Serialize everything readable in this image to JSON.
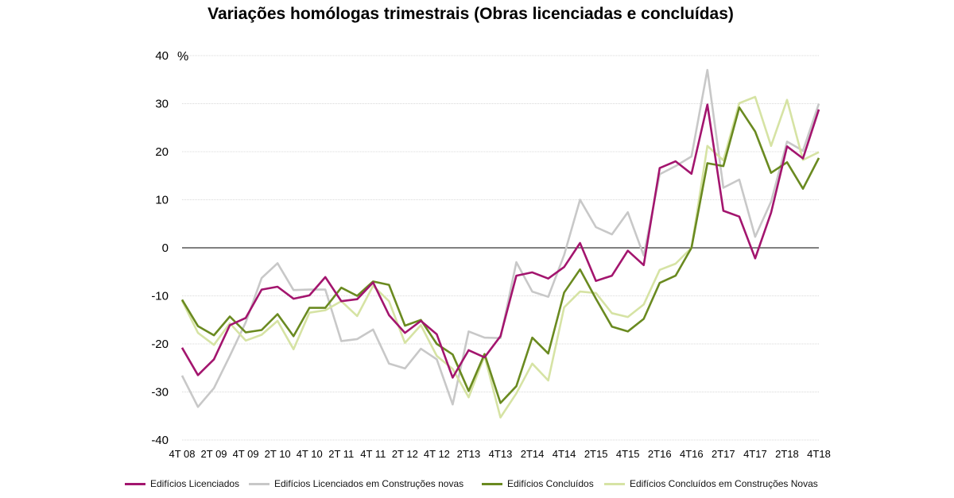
{
  "chart_data": {
    "type": "line",
    "title": "Variações homólogas trimestrais (Obras licenciadas e concluídas)",
    "ylabel": "%",
    "xlabel": "",
    "ylim": [
      -40,
      40
    ],
    "yticks": [
      -40,
      -30,
      -20,
      -10,
      0,
      10,
      20,
      30,
      40
    ],
    "categories": [
      "4T 08",
      "1T 09",
      "2T 09",
      "3T 09",
      "4T 09",
      "1T 10",
      "2T 10",
      "3T 10",
      "4T 10",
      "1T 11",
      "2T 11",
      "3T 11",
      "4T 11",
      "1T 12",
      "2T 12",
      "3T 12",
      "4T 12",
      "1T13",
      "2T13",
      "3T13",
      "4T13",
      "1T14",
      "2T14",
      "3T14",
      "4T14",
      "1T15",
      "2T15",
      "3T15",
      "4T15",
      "1T16",
      "2T16",
      "3T16",
      "4T16",
      "1T17",
      "2T17",
      "3T17",
      "4T17",
      "1T18",
      "2T18",
      "3T18",
      "4T18"
    ],
    "tick_labels": [
      "4T 08",
      "2T 09",
      "4T 09",
      "2T 10",
      "4T 10",
      "2T 11",
      "4T 11",
      "2T 12",
      "4T 12",
      "2T13",
      "4T13",
      "2T14",
      "4T14",
      "2T15",
      "4T15",
      "2T16",
      "4T16",
      "2T17",
      "4T17",
      "2T18",
      "4T18"
    ],
    "legend_position": "bottom",
    "grid": "horizontal",
    "series": [
      {
        "name": "Edifícios Licenciados",
        "color": "#A3156E",
        "values": [
          -20.8,
          -26.5,
          -23.2,
          -16.1,
          -14.6,
          -8.7,
          -8.1,
          -10.6,
          -9.9,
          -6.1,
          -11.1,
          -10.7,
          -7.2,
          -14.0,
          -17.7,
          -15.2,
          -18.0,
          -27.0,
          -21.3,
          -22.8,
          -18.4,
          -5.8,
          -5.1,
          -6.4,
          -4.0,
          1.0,
          -6.9,
          -5.8,
          -0.6,
          -3.6,
          16.6,
          18.0,
          15.4,
          29.8,
          7.7,
          6.5,
          -2.2,
          7.3,
          21.1,
          18.6,
          28.8
        ]
      },
      {
        "name": "Edifícios Licenciados em Construções novas",
        "color": "#C8C8C8",
        "values": [
          -26.6,
          -33.1,
          -29.2,
          -22.5,
          -15.5,
          -6.3,
          -3.2,
          -8.8,
          -8.7,
          -8.7,
          -19.4,
          -19.0,
          -17.0,
          -24.1,
          -25.1,
          -21.0,
          -23.2,
          -32.6,
          -17.4,
          -18.7,
          -18.8,
          -3.0,
          -9.1,
          -10.2,
          -1.5,
          10.0,
          4.3,
          2.8,
          7.4,
          -1.6,
          15.3,
          17.0,
          19.0,
          37.0,
          12.5,
          14.2,
          2.3,
          9.6,
          22.1,
          20.2,
          30.0
        ]
      },
      {
        "name": "Edifícios Concluídos",
        "color": "#6A8A20",
        "values": [
          -10.8,
          -16.3,
          -18.2,
          -14.3,
          -17.6,
          -17.1,
          -13.8,
          -18.4,
          -12.5,
          -12.5,
          -8.3,
          -10.0,
          -7.0,
          -7.7,
          -16.2,
          -15.0,
          -20.0,
          -22.2,
          -29.8,
          -22.1,
          -32.3,
          -28.8,
          -18.7,
          -22.0,
          -9.3,
          -4.5,
          -10.6,
          -16.4,
          -17.4,
          -14.8,
          -7.3,
          -5.8,
          0.0,
          17.6,
          17.0,
          29.2,
          24.2,
          15.6,
          17.8,
          12.3,
          18.7
        ]
      },
      {
        "name": "Edifícios Concluídos em Construções Novas",
        "color": "#D6E3A4",
        "values": [
          -11.0,
          -17.7,
          -20.2,
          -15.7,
          -19.3,
          -18.1,
          -15.2,
          -21.1,
          -13.5,
          -13.0,
          -11.1,
          -14.2,
          -7.9,
          -11.1,
          -19.8,
          -16.1,
          -22.5,
          -25.2,
          -31.1,
          -22.5,
          -35.3,
          -30.3,
          -24.1,
          -27.6,
          -12.4,
          -9.1,
          -9.4,
          -13.6,
          -14.4,
          -11.8,
          -4.6,
          -3.3,
          0.0,
          21.2,
          18.2,
          30.1,
          31.4,
          21.2,
          30.8,
          18.3,
          19.9
        ]
      }
    ]
  }
}
